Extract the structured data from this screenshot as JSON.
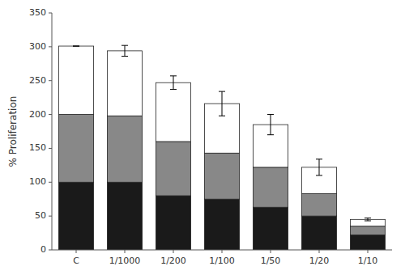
{
  "chart_data": {
    "type": "bar",
    "stacked": true,
    "ylabel": "% Proliferation",
    "categories": [
      "C",
      "1/1000",
      "1/200",
      "1/100",
      "1/50",
      "1/20",
      "1/10"
    ],
    "series": [
      {
        "color": "#1a1a1a",
        "values": [
          100,
          100,
          80,
          75,
          63,
          50,
          22
        ]
      },
      {
        "color": "#888888",
        "values": [
          100,
          98,
          80,
          68,
          59,
          33,
          13
        ]
      },
      {
        "color": "#ffffff",
        "values": [
          101,
          96,
          87,
          73,
          63,
          39,
          10
        ],
        "errors": [
          0,
          8,
          10,
          18,
          15,
          12,
          2
        ]
      }
    ],
    "ylim": [
      0,
      350
    ],
    "yticks": [
      0,
      50,
      100,
      150,
      200,
      250,
      300,
      350
    ],
    "grid": false
  }
}
